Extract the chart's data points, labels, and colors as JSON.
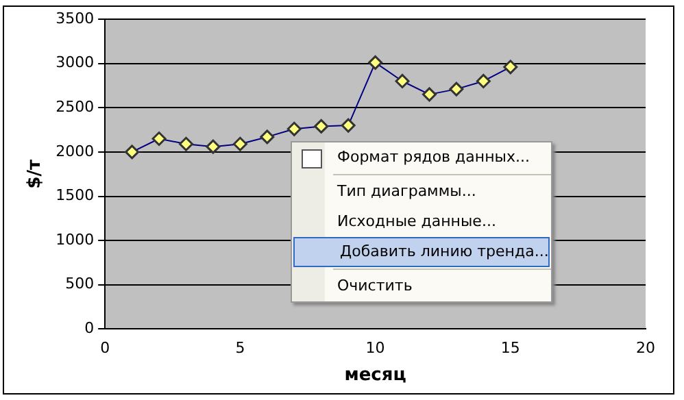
{
  "chart_data": {
    "type": "line",
    "xlabel": "месяц",
    "ylabel": "$/т",
    "x": [
      1,
      2,
      3,
      4,
      5,
      6,
      7,
      8,
      9,
      10,
      11,
      12,
      13,
      14,
      15
    ],
    "series": [
      {
        "color": "#000080",
        "values": [
          2000,
          2150,
          2090,
          2060,
          2090,
          2170,
          2260,
          2290,
          2300,
          3010,
          2800,
          2650,
          2710,
          2800,
          2960
        ]
      }
    ],
    "xlim": [
      0,
      20
    ],
    "xticks": [
      0,
      5,
      10,
      15,
      20
    ],
    "ylim": [
      0,
      3500
    ],
    "yticks": [
      0,
      500,
      1000,
      1500,
      2000,
      2500,
      3000,
      3500
    ],
    "grid": "y",
    "legend": false,
    "marker": "diamond",
    "line_style": "solid",
    "annotations": [
      "Формат рядов данных...",
      "Тип диаграммы...",
      "Исходные данные...",
      "Добавить линию тренда...",
      "Очистить"
    ]
  }
}
